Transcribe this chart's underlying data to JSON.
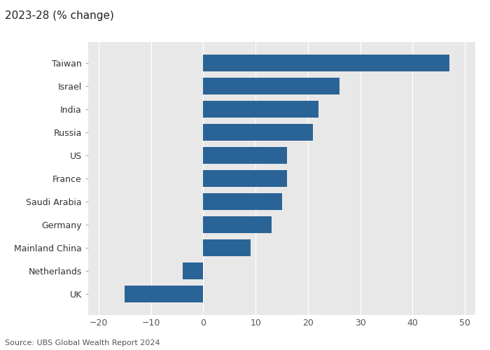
{
  "title": "2023-28 (% change)",
  "source": "Source: UBS Global Wealth Report 2024",
  "categories": [
    "Taiwan",
    "Israel",
    "India",
    "Russia",
    "US",
    "France",
    "Saudi Arabia",
    "Germany",
    "Mainland China",
    "Netherlands",
    "UK"
  ],
  "values": [
    47,
    26,
    22,
    21,
    16,
    16,
    15,
    13,
    9,
    -4,
    -15
  ],
  "bar_color": "#2a6496",
  "xlim": [
    -22,
    52
  ],
  "xticks": [
    -20,
    -10,
    0,
    10,
    20,
    30,
    40,
    50
  ],
  "background_color": "#ffffff",
  "plot_bg_color": "#e8e8e8",
  "title_fontsize": 11,
  "source_fontsize": 8,
  "tick_fontsize": 9,
  "label_fontsize": 9
}
